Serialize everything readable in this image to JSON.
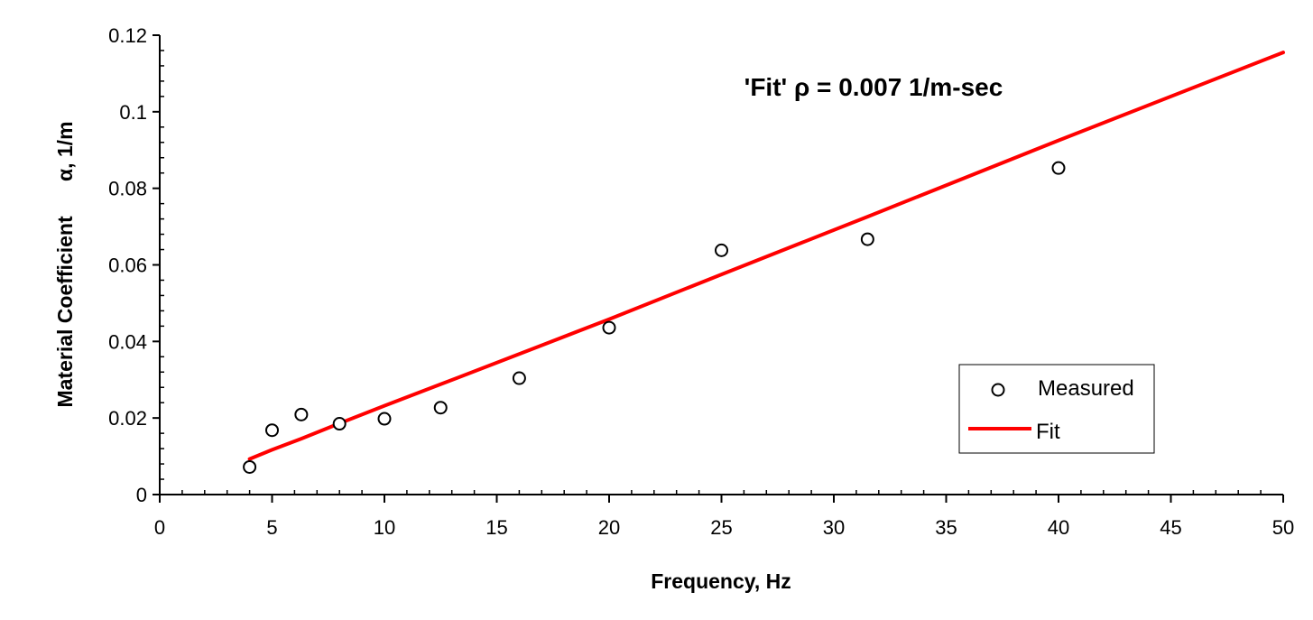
{
  "chart_data": {
    "type": "scatter",
    "title": "",
    "annotation": "'Fit' ρ = 0.007 1/m-sec",
    "xlabel": "Frequency, Hz",
    "ylabel": "Material Coefficient      α, 1/m",
    "xlim": [
      0,
      50
    ],
    "ylim": [
      0,
      0.12
    ],
    "x_ticks": [
      0,
      5,
      10,
      15,
      20,
      25,
      30,
      35,
      40,
      45,
      50
    ],
    "y_ticks": [
      0,
      0.02,
      0.04,
      0.06,
      0.08,
      0.1,
      0.12
    ],
    "x_tick_labels": [
      "0",
      "5",
      "10",
      "15",
      "20",
      "25",
      "30",
      "35",
      "40",
      "45",
      "50"
    ],
    "y_tick_labels": [
      "0",
      "0.02",
      "0.04",
      "0.06",
      "0.08",
      "0.1",
      "0.12"
    ],
    "grid": false,
    "legend_position": "lower-right",
    "series": [
      {
        "name": "Measured",
        "kind": "scatter",
        "marker": "open-circle",
        "color": "#000000",
        "x": [
          4,
          5,
          6.3,
          8,
          10,
          12.5,
          16,
          20,
          25,
          31.5,
          40
        ],
        "y": [
          0.0072,
          0.0168,
          0.0209,
          0.0185,
          0.0198,
          0.0227,
          0.0304,
          0.0436,
          0.0638,
          0.0667,
          0.0853
        ]
      },
      {
        "name": "Fit",
        "kind": "line",
        "color": "#ff0000",
        "x": [
          4,
          5,
          6.3,
          8,
          10,
          12.5,
          16,
          20,
          25,
          31.5,
          40,
          50
        ],
        "y": [
          0.0093,
          0.0117,
          0.0146,
          0.0186,
          0.0232,
          0.0288,
          0.0367,
          0.0458,
          0.0575,
          0.0726,
          0.0925,
          0.1155
        ]
      }
    ]
  },
  "legend": {
    "items": [
      "Measured",
      "Fit"
    ]
  }
}
